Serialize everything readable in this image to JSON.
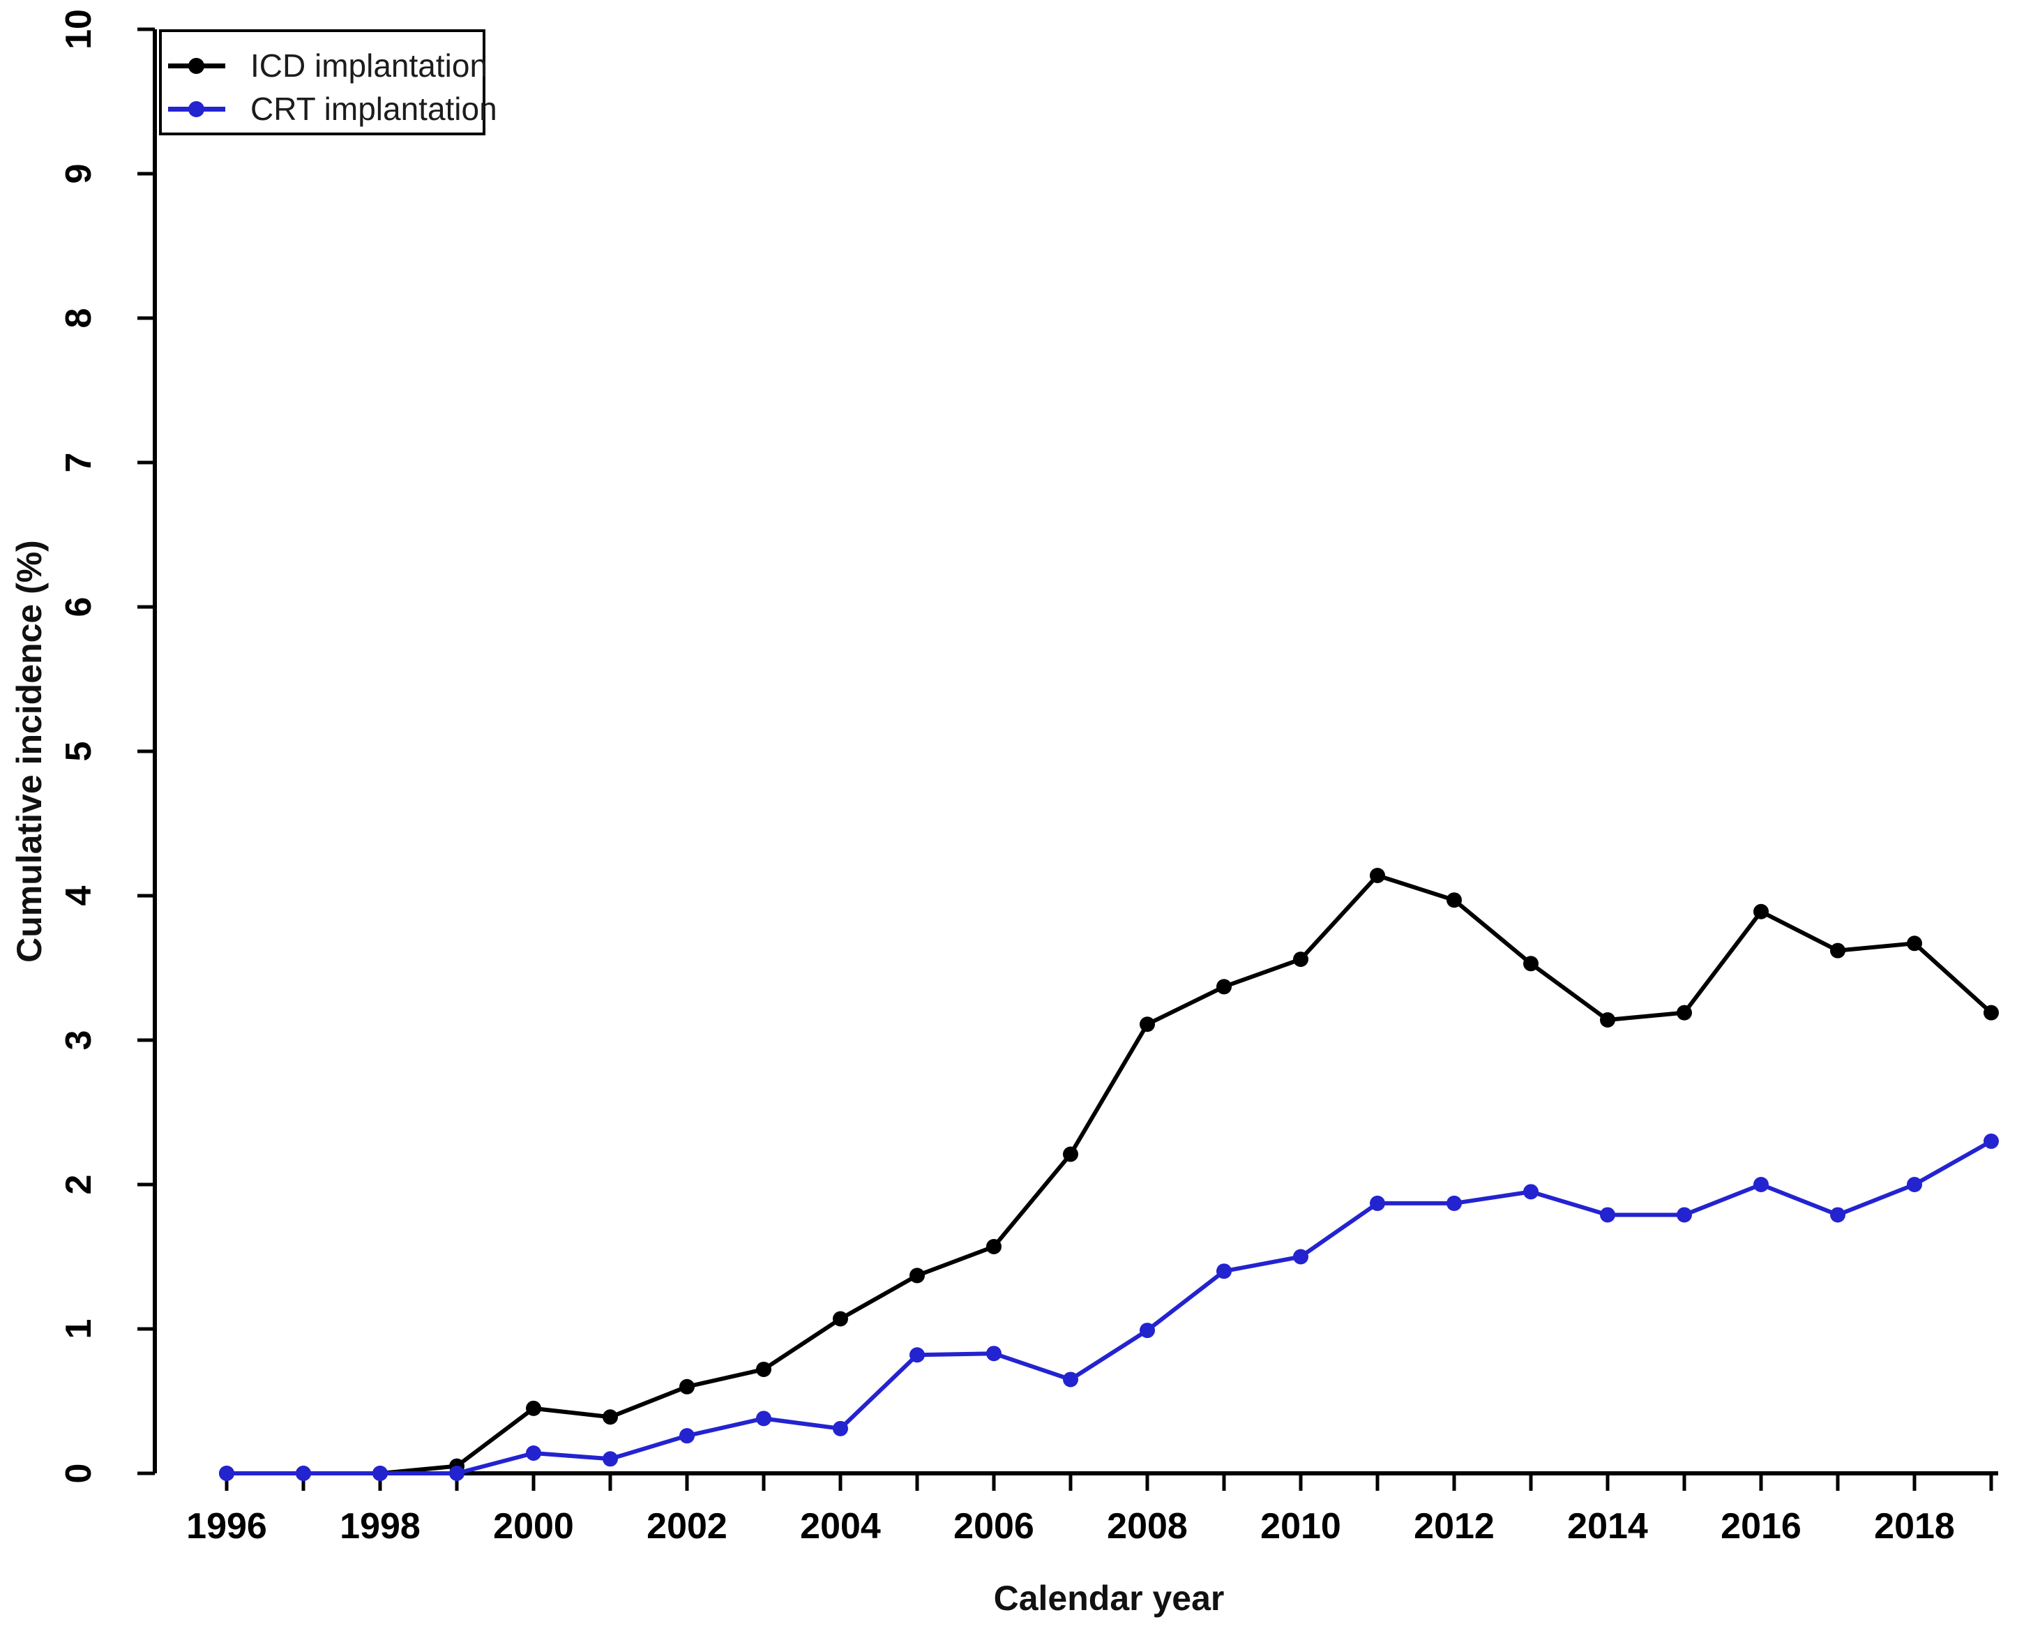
{
  "figure": {
    "background": "#ffffff"
  },
  "chart_data": {
    "type": "line",
    "title": "",
    "xlabel": "Calendar year",
    "ylabel": "Cumulative incidence (%)",
    "xlim": [
      1996,
      2019
    ],
    "ylim": [
      0,
      10
    ],
    "grid": false,
    "legend_position": "top-left",
    "x": [
      1996,
      1997,
      1998,
      1999,
      2000,
      2001,
      2002,
      2003,
      2004,
      2005,
      2006,
      2007,
      2008,
      2009,
      2010,
      2011,
      2012,
      2013,
      2014,
      2015,
      2016,
      2017,
      2018,
      2019
    ],
    "x_tick_labels": [
      "1996",
      "1998",
      "2000",
      "2002",
      "2004",
      "2006",
      "2008",
      "2010",
      "2012",
      "2014",
      "2016",
      "2018"
    ],
    "y_tick_labels": [
      "0",
      "1",
      "2",
      "3",
      "4",
      "5",
      "6",
      "7",
      "8",
      "9",
      "10"
    ],
    "series": [
      {
        "name": "ICD implantation",
        "color": "#000000",
        "marker": "circle",
        "values": [
          0,
          0,
          0,
          0.05,
          0.45,
          0.39,
          0.6,
          0.72,
          1.07,
          1.37,
          1.57,
          2.21,
          3.11,
          3.37,
          3.56,
          4.14,
          3.97,
          3.53,
          3.14,
          3.19,
          3.89,
          3.62,
          3.67,
          3.19
        ]
      },
      {
        "name": "CRT implantation",
        "color": "#2323d0",
        "marker": "circle",
        "values": [
          0,
          0,
          0,
          0,
          0.14,
          0.1,
          0.26,
          0.38,
          0.31,
          0.82,
          0.83,
          0.65,
          0.99,
          1.4,
          1.5,
          1.87,
          1.87,
          1.95,
          1.79,
          1.79,
          2.0,
          1.79,
          2.0,
          2.3
        ]
      }
    ]
  }
}
